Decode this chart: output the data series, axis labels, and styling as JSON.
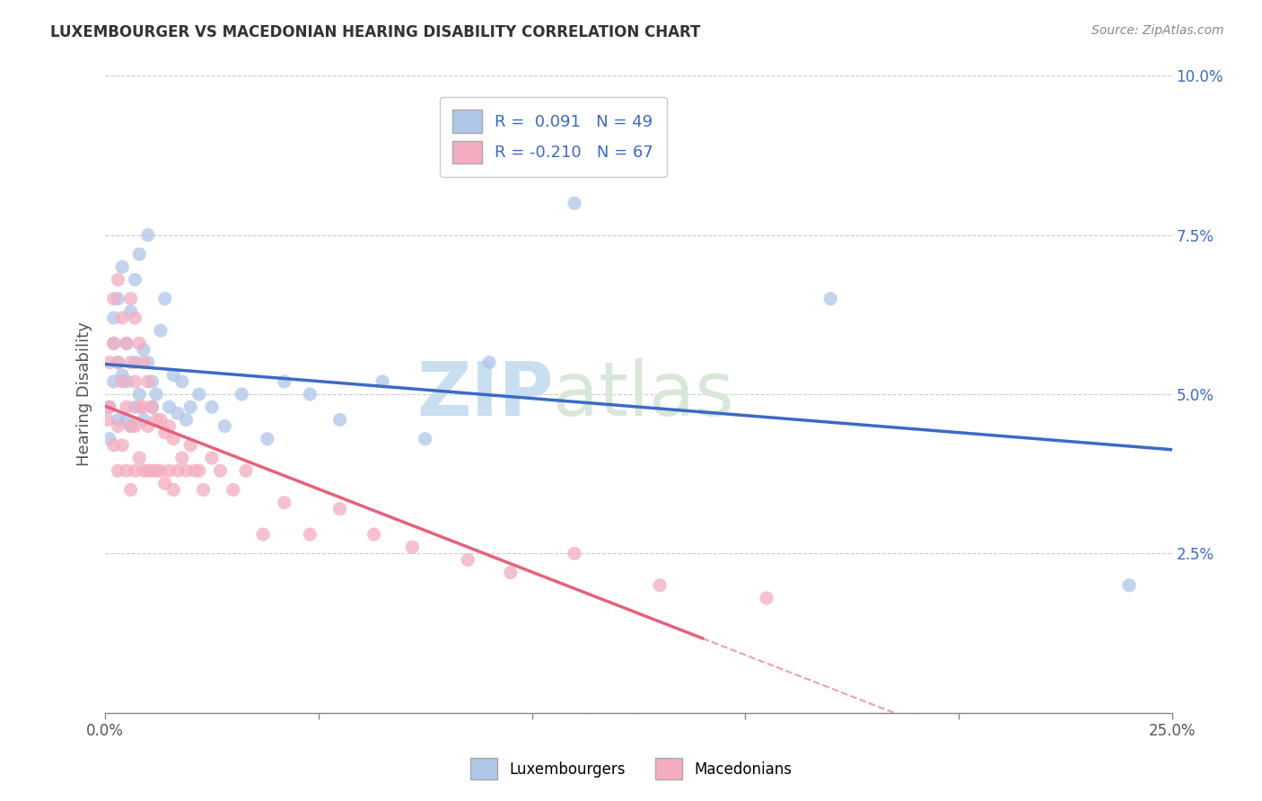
{
  "title": "LUXEMBOURGER VS MACEDONIAN HEARING DISABILITY CORRELATION CHART",
  "source": "Source: ZipAtlas.com",
  "ylabel": "Hearing Disability",
  "xlim": [
    0,
    0.25
  ],
  "ylim": [
    0,
    0.1
  ],
  "xticks": [
    0,
    0.05,
    0.1,
    0.15,
    0.2,
    0.25
  ],
  "xticklabels": [
    "0.0%",
    "",
    "",
    "",
    "",
    "25.0%"
  ],
  "yticks": [
    0.0,
    0.025,
    0.05,
    0.075,
    0.1
  ],
  "yticklabels": [
    "",
    "2.5%",
    "5.0%",
    "7.5%",
    "10.0%"
  ],
  "blue_R": 0.091,
  "blue_N": 49,
  "pink_R": -0.21,
  "pink_N": 67,
  "blue_color": "#aec6e8",
  "pink_color": "#f4adc0",
  "blue_line_color": "#3a6bc4",
  "pink_line_color": "#e8607a",
  "background_color": "#ffffff",
  "grid_color": "#cccccc",
  "watermark_zip": "ZIP",
  "watermark_atlas": "atlas",
  "legend_label_blue": "Luxembourgers",
  "legend_label_pink": "Macedonians",
  "blue_points_x": [
    0.001,
    0.001,
    0.002,
    0.002,
    0.002,
    0.003,
    0.003,
    0.003,
    0.004,
    0.004,
    0.005,
    0.005,
    0.005,
    0.006,
    0.006,
    0.007,
    0.007,
    0.007,
    0.008,
    0.008,
    0.009,
    0.009,
    0.01,
    0.01,
    0.011,
    0.011,
    0.012,
    0.013,
    0.014,
    0.015,
    0.016,
    0.017,
    0.018,
    0.019,
    0.02,
    0.022,
    0.025,
    0.028,
    0.032,
    0.038,
    0.042,
    0.048,
    0.055,
    0.065,
    0.075,
    0.09,
    0.11,
    0.17,
    0.24
  ],
  "blue_points_y": [
    0.043,
    0.048,
    0.052,
    0.058,
    0.062,
    0.046,
    0.055,
    0.065,
    0.053,
    0.07,
    0.046,
    0.052,
    0.058,
    0.045,
    0.063,
    0.048,
    0.055,
    0.068,
    0.05,
    0.072,
    0.046,
    0.057,
    0.055,
    0.075,
    0.048,
    0.052,
    0.05,
    0.06,
    0.065,
    0.048,
    0.053,
    0.047,
    0.052,
    0.046,
    0.048,
    0.05,
    0.048,
    0.045,
    0.05,
    0.043,
    0.052,
    0.05,
    0.046,
    0.052,
    0.043,
    0.055,
    0.08,
    0.065,
    0.02
  ],
  "pink_points_x": [
    0.0005,
    0.001,
    0.001,
    0.002,
    0.002,
    0.002,
    0.003,
    0.003,
    0.003,
    0.003,
    0.004,
    0.004,
    0.004,
    0.005,
    0.005,
    0.005,
    0.006,
    0.006,
    0.006,
    0.006,
    0.007,
    0.007,
    0.007,
    0.007,
    0.008,
    0.008,
    0.008,
    0.009,
    0.009,
    0.009,
    0.01,
    0.01,
    0.01,
    0.011,
    0.011,
    0.012,
    0.012,
    0.013,
    0.013,
    0.014,
    0.014,
    0.015,
    0.015,
    0.016,
    0.016,
    0.017,
    0.018,
    0.019,
    0.02,
    0.021,
    0.022,
    0.023,
    0.025,
    0.027,
    0.03,
    0.033,
    0.037,
    0.042,
    0.048,
    0.055,
    0.063,
    0.072,
    0.085,
    0.095,
    0.11,
    0.13,
    0.155
  ],
  "pink_points_y": [
    0.046,
    0.048,
    0.055,
    0.042,
    0.058,
    0.065,
    0.038,
    0.045,
    0.055,
    0.068,
    0.042,
    0.052,
    0.062,
    0.038,
    0.048,
    0.058,
    0.035,
    0.045,
    0.055,
    0.065,
    0.038,
    0.045,
    0.052,
    0.062,
    0.04,
    0.048,
    0.058,
    0.038,
    0.048,
    0.055,
    0.038,
    0.045,
    0.052,
    0.038,
    0.048,
    0.038,
    0.046,
    0.038,
    0.046,
    0.036,
    0.044,
    0.038,
    0.045,
    0.035,
    0.043,
    0.038,
    0.04,
    0.038,
    0.042,
    0.038,
    0.038,
    0.035,
    0.04,
    0.038,
    0.035,
    0.038,
    0.028,
    0.033,
    0.028,
    0.032,
    0.028,
    0.026,
    0.024,
    0.022,
    0.025,
    0.02,
    0.018
  ]
}
